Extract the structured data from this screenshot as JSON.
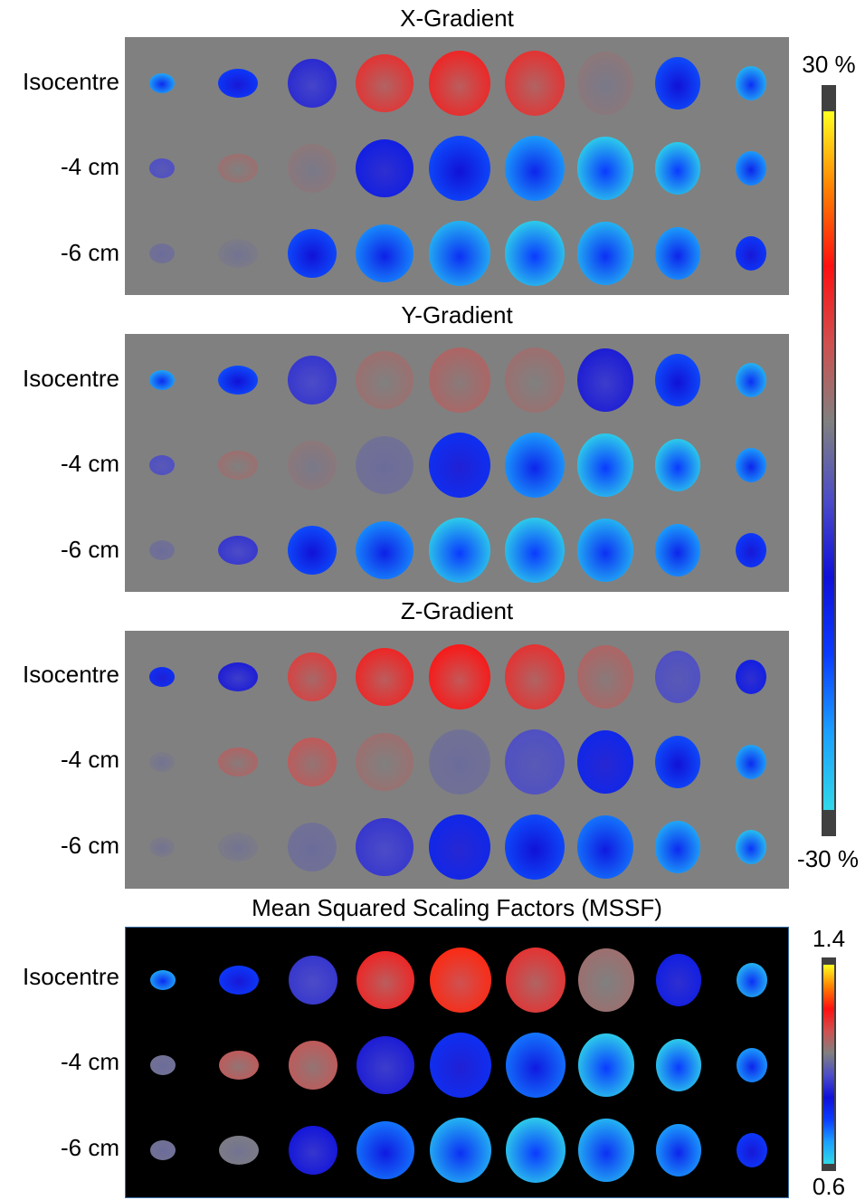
{
  "panels": [
    {
      "key": "x",
      "title": "X-Gradient",
      "background": "#808080",
      "rows": [
        {
          "label": "Isocentre",
          "values": [
            -0.85,
            -0.55,
            -0.25,
            0.45,
            0.5,
            0.45,
            0.15,
            -0.6,
            -0.9
          ]
        },
        {
          "label": "-4 cm",
          "values": [
            -0.1,
            0.2,
            0.15,
            -0.4,
            -0.6,
            -0.8,
            -1.0,
            -1.0,
            -0.8
          ]
        },
        {
          "label": "-6 cm",
          "values": [
            0.05,
            0.1,
            -0.6,
            -0.75,
            -0.9,
            -1.0,
            -0.9,
            -0.8,
            -0.55
          ]
        }
      ]
    },
    {
      "key": "y",
      "title": "Y-Gradient",
      "background": "#808080",
      "rows": [
        {
          "label": "Isocentre",
          "values": [
            -0.85,
            -0.6,
            -0.2,
            0.2,
            0.25,
            0.2,
            -0.3,
            -0.6,
            -0.9
          ]
        },
        {
          "label": "-4 cm",
          "values": [
            -0.1,
            0.2,
            0.15,
            0.05,
            -0.5,
            -0.8,
            -1.0,
            -1.0,
            -0.8
          ]
        },
        {
          "label": "-6 cm",
          "values": [
            0.05,
            -0.2,
            -0.6,
            -0.75,
            -1.0,
            -1.0,
            -0.9,
            -0.8,
            -0.55
          ]
        }
      ]
    },
    {
      "key": "z",
      "title": "Z-Gradient",
      "background": "#808080",
      "rows": [
        {
          "label": "Isocentre",
          "values": [
            -0.5,
            -0.3,
            0.4,
            0.5,
            0.55,
            0.45,
            0.25,
            -0.1,
            -0.4
          ]
        },
        {
          "label": "-4 cm",
          "values": [
            0.1,
            0.25,
            0.3,
            0.2,
            0.05,
            -0.1,
            -0.45,
            -0.6,
            -0.85
          ]
        },
        {
          "label": "-6 cm",
          "values": [
            0.1,
            0.1,
            0.05,
            -0.2,
            -0.45,
            -0.6,
            -0.7,
            -0.85,
            -0.95
          ]
        }
      ]
    },
    {
      "key": "mssf",
      "title": "Mean Squared Scaling Factors (MSSF)",
      "background": "#000000",
      "rows": [
        {
          "label": "Isocentre",
          "values": [
            -0.85,
            -0.55,
            -0.2,
            0.5,
            0.6,
            0.45,
            0.2,
            -0.4,
            -0.9
          ]
        },
        {
          "label": "-4 cm",
          "values": [
            0.05,
            0.3,
            0.3,
            -0.3,
            -0.5,
            -0.7,
            -1.0,
            -1.0,
            -0.8
          ]
        },
        {
          "label": "-6 cm",
          "values": [
            0.05,
            0.1,
            -0.35,
            -0.7,
            -0.9,
            -1.0,
            -0.9,
            -0.8,
            -0.55
          ]
        }
      ]
    }
  ],
  "colorbars": [
    {
      "key": "percent",
      "max_label": "30 %",
      "min_label": "-30 %"
    },
    {
      "key": "mssf",
      "max_label": "1.4",
      "min_label": "0.6"
    }
  ],
  "colormap": {
    "stops": [
      "#30d8e8",
      "#1aa0ff",
      "#0a3cff",
      "#1010d8",
      "#4c4cc8",
      "#808080",
      "#d05050",
      "#ff1010",
      "#ff8000",
      "#ffff20"
    ]
  }
}
